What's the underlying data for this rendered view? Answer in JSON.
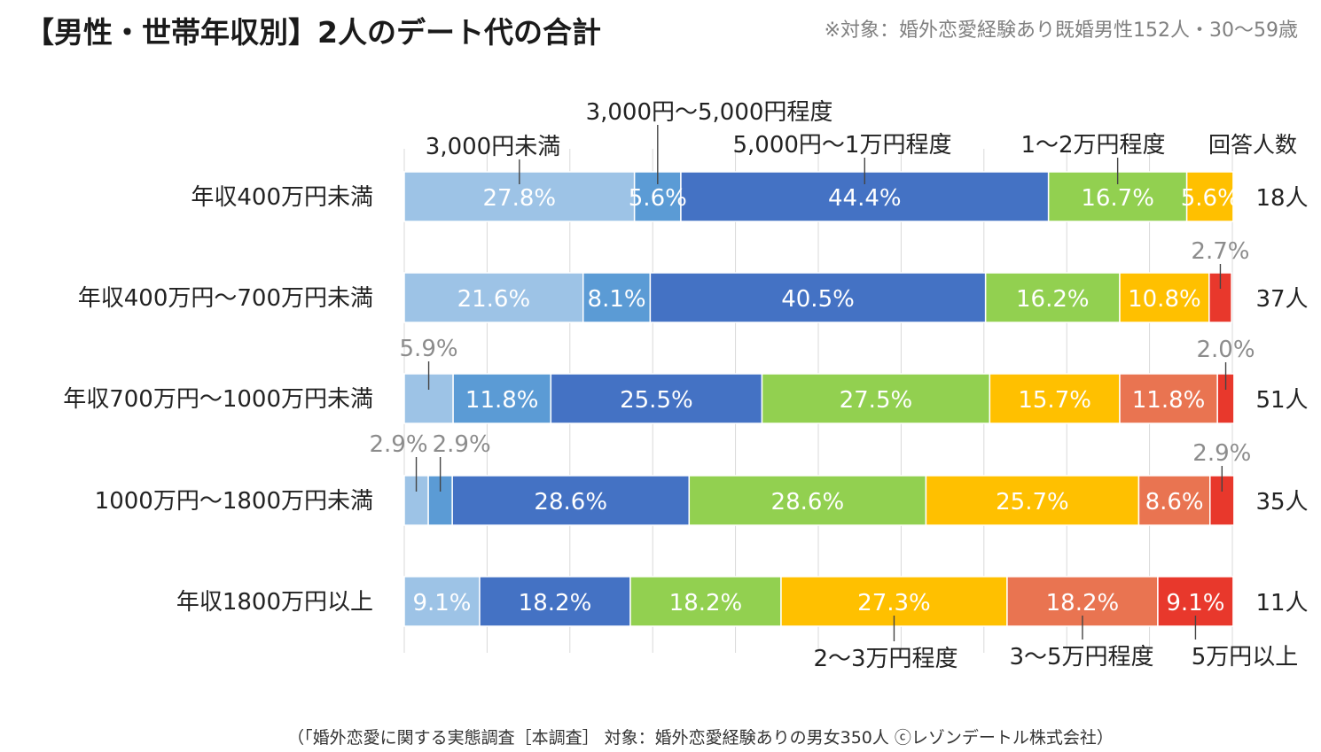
{
  "title": "【男性・世帯年収別】2人のデート代の合計",
  "subtitle": "※対象：婚外恋愛経験あり既婚男性152人・30～59歳",
  "footer": "（「婚外恋愛に関する実態調査［本調査］ 対象：婚外恋愛経験ありの男女350人 ⓒレゾンデートル株式会社）",
  "chart_data": {
    "type": "bar",
    "orientation": "horizontal",
    "stacked": "100%",
    "xlim": [
      0,
      100
    ],
    "grid": true,
    "count_header": "回答人数",
    "categories": [
      "年収400万円未満",
      "年収400万円～700万円未満",
      "年収700万円～1000万円未満",
      "1000万円～1800万円未満",
      "年収1800万円以上"
    ],
    "counts": [
      "18人",
      "37人",
      "51人",
      "35人",
      "11人"
    ],
    "series": [
      {
        "name": "3,000円未満",
        "color": "#9DC3E6",
        "values": [
          27.8,
          21.6,
          5.9,
          2.9,
          9.1
        ],
        "labels": [
          "27.8%",
          "21.6%",
          "5.9%",
          "2.9%",
          "9.1%"
        ]
      },
      {
        "name": "3,000円～5,000円程度",
        "color": "#5B9BD5",
        "values": [
          5.6,
          8.1,
          11.8,
          2.9,
          0
        ],
        "labels": [
          "5.6%",
          "8.1%",
          "11.8%",
          "2.9%",
          ""
        ]
      },
      {
        "name": "5,000円～1万円程度",
        "color": "#4472C4",
        "values": [
          44.4,
          40.5,
          25.5,
          28.6,
          18.2
        ],
        "labels": [
          "44.4%",
          "40.5%",
          "25.5%",
          "28.6%",
          "18.2%"
        ]
      },
      {
        "name": "1～2万円程度",
        "color": "#92D050",
        "values": [
          16.7,
          16.2,
          27.5,
          28.6,
          18.2
        ],
        "labels": [
          "16.7%",
          "16.2%",
          "27.5%",
          "28.6%",
          "18.2%"
        ]
      },
      {
        "name": "2～3万円程度",
        "color": "#FFC000",
        "values": [
          5.6,
          10.8,
          15.7,
          25.7,
          27.3
        ],
        "labels": [
          "5.6%",
          "10.8%",
          "15.7%",
          "25.7%",
          "27.3%"
        ]
      },
      {
        "name": "3～5万円程度",
        "color": "#E97451",
        "values": [
          0,
          0,
          11.8,
          8.6,
          18.2
        ],
        "labels": [
          "",
          "",
          "11.8%",
          "8.6%",
          "18.2%"
        ]
      },
      {
        "name": "5万円以上",
        "color": "#E8382C",
        "values": [
          0,
          2.7,
          2.0,
          2.9,
          9.1
        ],
        "labels": [
          "",
          "2.7%",
          "2.0%",
          "2.9%",
          "9.1%"
        ]
      }
    ]
  }
}
